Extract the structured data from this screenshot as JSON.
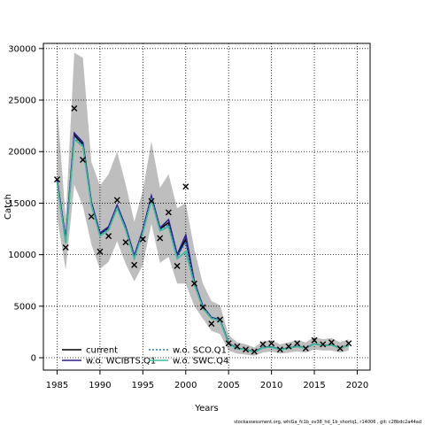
{
  "chart_data": {
    "type": "line",
    "title": "",
    "xlabel": "Years",
    "ylabel": "Catch",
    "xlim": [
      1983.4,
      2021.5
    ],
    "ylim": [
      -1200,
      30500
    ],
    "grid": true,
    "x_ticks": [
      1985,
      1990,
      1995,
      2000,
      2005,
      2010,
      2015,
      2020
    ],
    "y_ticks": [
      0,
      5000,
      10000,
      15000,
      20000,
      25000,
      30000
    ],
    "years": [
      1985,
      1986,
      1987,
      1988,
      1989,
      1990,
      1991,
      1992,
      1993,
      1994,
      1995,
      1996,
      1997,
      1998,
      1999,
      2000,
      2001,
      2002,
      2003,
      2004,
      2005,
      2006,
      2007,
      2008,
      2009,
      2010,
      2011,
      2012,
      2013,
      2014,
      2015,
      2016,
      2017,
      2018,
      2019
    ],
    "confidence_band": {
      "upper": [
        24500,
        13500,
        29600,
        29100,
        19000,
        16700,
        17800,
        20000,
        16800,
        13200,
        16200,
        21000,
        16500,
        17800,
        14500,
        15000,
        10500,
        7200,
        5500,
        5100,
        2200,
        1500,
        1300,
        1000,
        1600,
        1700,
        1300,
        1500,
        1700,
        1500,
        2000,
        1800,
        1900,
        1500,
        1800
      ],
      "lower": [
        13600,
        8500,
        16800,
        14700,
        11000,
        8600,
        9300,
        11300,
        9100,
        7400,
        9000,
        13000,
        9200,
        9800,
        7200,
        7200,
        5000,
        3800,
        2600,
        2300,
        700,
        400,
        300,
        200,
        500,
        600,
        400,
        500,
        600,
        500,
        800,
        700,
        700,
        500,
        700
      ]
    },
    "series": [
      {
        "name": "current",
        "color": "#000000",
        "dash": "",
        "values": [
          17200,
          11300,
          21600,
          20700,
          15000,
          12000,
          12600,
          14700,
          12600,
          9800,
          12300,
          15600,
          12500,
          13100,
          9900,
          11500,
          7300,
          4900,
          3900,
          3700,
          1400,
          900,
          800,
          550,
          1000,
          1050,
          800,
          950,
          1100,
          950,
          1350,
          1200,
          1250,
          950,
          1200
        ]
      },
      {
        "name": "w.o. WCIBTS.Q1",
        "color": "#2d1d8c",
        "dash": "",
        "values": [
          17300,
          11500,
          21800,
          20900,
          15100,
          12100,
          12700,
          14800,
          12700,
          9900,
          12400,
          15700,
          12600,
          13400,
          10000,
          11900,
          7400,
          5000,
          3900,
          3700,
          1400,
          900,
          800,
          560,
          1000,
          1050,
          800,
          950,
          1100,
          950,
          1350,
          1200,
          1250,
          950,
          1200
        ]
      },
      {
        "name": "w.o. SCO.Q1",
        "color": "#2a7fc4",
        "dash": "2,2",
        "values": [
          17100,
          11200,
          21400,
          20600,
          14900,
          11900,
          12500,
          14600,
          12500,
          9700,
          12200,
          15500,
          12400,
          12900,
          9800,
          11200,
          7200,
          4900,
          3850,
          3650,
          1380,
          890,
          790,
          540,
          990,
          1040,
          790,
          940,
          1090,
          940,
          1340,
          1190,
          1240,
          940,
          1190
        ]
      },
      {
        "name": "w.o. SWC.Q4",
        "color": "#3dbb9a",
        "dash": "",
        "values": [
          17000,
          11100,
          21200,
          20500,
          14800,
          11800,
          12400,
          14500,
          12400,
          9600,
          12100,
          15300,
          12300,
          12700,
          9600,
          10300,
          7100,
          4800,
          3800,
          3600,
          1350,
          880,
          780,
          530,
          980,
          1030,
          780,
          930,
          1080,
          930,
          1330,
          1180,
          1230,
          930,
          1180
        ]
      }
    ],
    "observed": {
      "marker": "x",
      "years": [
        1985,
        1986,
        1987,
        1988,
        1989,
        1990,
        1991,
        1992,
        1993,
        1994,
        1995,
        1996,
        1997,
        1998,
        1999,
        2000,
        2001,
        2002,
        2003,
        2004,
        2005,
        2006,
        2007,
        2008,
        2009,
        2010,
        2011,
        2012,
        2013,
        2014,
        2015,
        2016,
        2017,
        2018,
        2019
      ],
      "values": [
        17300,
        10700,
        24200,
        19200,
        13700,
        10300,
        11800,
        15300,
        11200,
        9000,
        11500,
        15200,
        11600,
        14100,
        8900,
        16600,
        7200,
        4900,
        3300,
        3700,
        1400,
        1100,
        800,
        600,
        1300,
        1400,
        800,
        1100,
        1400,
        900,
        1700,
        1300,
        1500,
        900,
        1400
      ]
    },
    "band_color": "#bebebe",
    "legend_position": "bottom-left",
    "footer": "stockassessment.org, whiGa_fc1b_ov38_hd_1b_shortq1, r14006 , git: c28bdc2a44ad"
  }
}
